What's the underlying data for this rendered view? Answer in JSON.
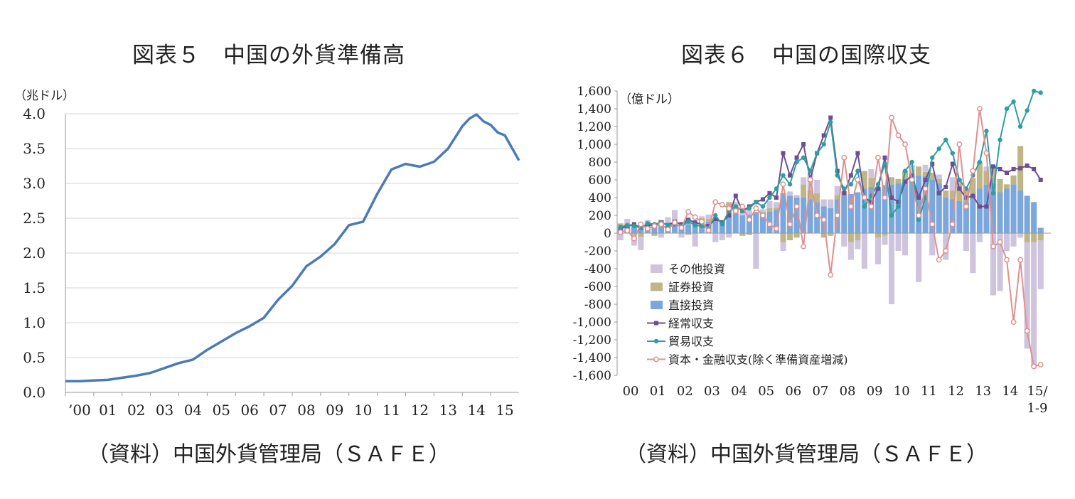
{
  "charts": [
    {
      "figure_title": "図表５　中国の外貨準備高",
      "source": "（資料）中国外貨管理局（ＳＡＦＥ）",
      "unit": "（兆ドル）",
      "color": "#4a7ab8"
    },
    {
      "figure_title": "図表６　中国の国際収支",
      "source": "（資料）中国外貨管理局（ＳＡＦＥ）",
      "unit": "（億ドル）",
      "colors": {
        "other": "#cfc4dd",
        "securities": "#bfb688",
        "direct": "#7ba7dc",
        "current": "#6b4f91",
        "trade": "#2e9ea2",
        "capital": "#e09090"
      }
    }
  ],
  "chart_data": [
    {
      "type": "line",
      "title": "図表５　中国の外貨準備高",
      "ylabel": "（兆ドル）",
      "ylim": [
        0,
        4
      ],
      "yticks": [
        "0.0",
        "0.5",
        "1.0",
        "1.5",
        "2.0",
        "2.5",
        "3.0",
        "3.5",
        "4.0"
      ],
      "xticks": [
        "’00",
        "01",
        "02",
        "03",
        "04",
        "05",
        "06",
        "07",
        "08",
        "09",
        "10",
        "11",
        "12",
        "13",
        "14",
        "15"
      ],
      "grid": true,
      "series": [
        {
          "x": [
            2000.0,
            2000.5,
            2001.0,
            2001.5,
            2002.0,
            2002.5,
            2003.0,
            2003.5,
            2004.0,
            2004.5,
            2005.0,
            2005.5,
            2006.0,
            2006.5,
            2007.0,
            2007.5,
            2008.0,
            2008.5,
            2009.0,
            2009.5,
            2010.0,
            2010.5,
            2011.0,
            2011.5,
            2012.0,
            2012.5,
            2013.0,
            2013.5,
            2014.0,
            2014.25,
            2014.5,
            2014.75,
            2015.0,
            2015.25,
            2015.5,
            2015.75,
            2016.0
          ],
          "values": [
            0.16,
            0.16,
            0.17,
            0.18,
            0.21,
            0.24,
            0.28,
            0.35,
            0.42,
            0.47,
            0.61,
            0.73,
            0.85,
            0.95,
            1.07,
            1.33,
            1.53,
            1.81,
            1.95,
            2.13,
            2.4,
            2.45,
            2.85,
            3.2,
            3.28,
            3.24,
            3.31,
            3.5,
            3.82,
            3.93,
            3.99,
            3.89,
            3.84,
            3.73,
            3.69,
            3.51,
            3.33
          ]
        }
      ]
    },
    {
      "type": "bar",
      "title": "図表６　中国の国際収支",
      "ylabel": "（億ドル）",
      "ylim": [
        -1600,
        1600
      ],
      "yticks": [
        "1,600",
        "1,400",
        "1,200",
        "1,000",
        "800",
        "600",
        "400",
        "200",
        "0",
        "-200",
        "-400",
        "-600",
        "-800",
        "-1,000",
        "-1,200",
        "-1,400",
        "-1,600"
      ],
      "xticks": [
        "00",
        "01",
        "02",
        "03",
        "04",
        "05",
        "06",
        "07",
        "08",
        "09",
        "10",
        "11",
        "12",
        "13",
        "14",
        "15/",
        "1-9"
      ],
      "legend_position": "bottom-left",
      "x_note": "quarterly, 2000Q1–2015Q3",
      "stacked_series": [
        {
          "name": "その他投資",
          "values": [
            -80,
            50,
            -120,
            -150,
            30,
            20,
            -50,
            80,
            120,
            -50,
            60,
            -150,
            20,
            50,
            -100,
            -80,
            -50,
            30,
            80,
            50,
            -400,
            30,
            80,
            60,
            -100,
            50,
            30,
            80,
            200,
            150,
            80,
            100,
            100,
            -150,
            -200,
            -100,
            -400,
            100,
            -300,
            -100,
            -800,
            -200,
            -250,
            100,
            -550,
            80,
            -250,
            50,
            -300,
            150,
            50,
            -200,
            -450,
            -100,
            50,
            -700,
            -650,
            -200,
            -150,
            -50,
            -1200,
            -1400,
            -550
          ]
        },
        {
          "name": "証券投資",
          "values": [
            50,
            30,
            -20,
            -40,
            20,
            -30,
            40,
            20,
            20,
            10,
            -20,
            10,
            20,
            30,
            10,
            10,
            150,
            100,
            -30,
            -20,
            10,
            20,
            40,
            30,
            -100,
            -80,
            -50,
            150,
            100,
            100,
            -50,
            -30,
            50,
            50,
            -100,
            -80,
            200,
            100,
            -50,
            -30,
            80,
            50,
            100,
            50,
            100,
            50,
            80,
            50,
            80,
            100,
            200,
            150,
            200,
            300,
            150,
            200,
            150,
            50,
            100,
            500,
            -100,
            -100,
            -80
          ]
        },
        {
          "name": "直接投資",
          "values": [
            60,
            80,
            70,
            80,
            100,
            90,
            110,
            80,
            120,
            100,
            100,
            110,
            150,
            130,
            160,
            140,
            200,
            220,
            200,
            210,
            230,
            220,
            240,
            260,
            450,
            420,
            400,
            400,
            380,
            350,
            300,
            280,
            380,
            420,
            440,
            460,
            500,
            520,
            520,
            540,
            550,
            560,
            600,
            620,
            650,
            640,
            600,
            560,
            400,
            380,
            360,
            350,
            420,
            500,
            550,
            560,
            460,
            500,
            550,
            480,
            420,
            350,
            60
          ]
        },
        {
          "name": "経常収支",
          "type": "line",
          "values": [
            50,
            80,
            100,
            60,
            100,
            80,
            120,
            90,
            130,
            100,
            150,
            120,
            100,
            80,
            160,
            120,
            200,
            420,
            250,
            300,
            350,
            380,
            450,
            400,
            900,
            650,
            850,
            1000,
            600,
            900,
            1100,
            1300,
            700,
            450,
            650,
            900,
            400,
            350,
            500,
            850,
            400,
            350,
            580,
            650,
            400,
            600,
            780,
            450,
            520,
            780,
            500,
            400,
            420,
            300,
            300,
            750,
            720,
            680,
            720,
            730,
            760,
            720,
            600
          ]
        },
        {
          "name": "貿易収支",
          "type": "line",
          "values": [
            70,
            90,
            80,
            60,
            110,
            100,
            120,
            90,
            100,
            80,
            130,
            90,
            80,
            60,
            200,
            100,
            250,
            300,
            250,
            280,
            350,
            300,
            400,
            500,
            650,
            550,
            800,
            850,
            700,
            900,
            1000,
            1250,
            650,
            500,
            550,
            700,
            300,
            420,
            550,
            780,
            200,
            300,
            700,
            800,
            150,
            400,
            850,
            950,
            1050,
            900,
            600,
            500,
            650,
            800,
            1150,
            450,
            1050,
            1400,
            1480,
            1200,
            1380,
            1600,
            1580
          ]
        },
        {
          "name": "資本・金融収支(除く準備資産増減)",
          "type": "line",
          "values": [
            10,
            30,
            -60,
            100,
            50,
            80,
            100,
            40,
            120,
            60,
            240,
            180,
            130,
            30,
            350,
            320,
            280,
            250,
            300,
            150,
            280,
            200,
            100,
            50,
            550,
            100,
            300,
            -150,
            600,
            200,
            150,
            -470,
            200,
            850,
            300,
            600,
            400,
            300,
            850,
            400,
            1300,
            1100,
            1000,
            600,
            200,
            500,
            100,
            -300,
            -200,
            100,
            1000,
            300,
            700,
            1400,
            900,
            -150,
            -100,
            -300,
            -1000,
            -300,
            -1100,
            -1500,
            -1480
          ]
        }
      ]
    }
  ]
}
